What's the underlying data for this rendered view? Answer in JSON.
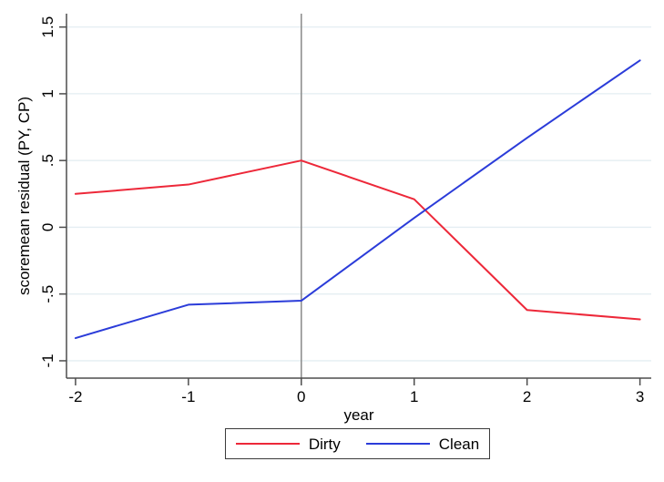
{
  "chart_data": {
    "type": "line",
    "title": "",
    "xlabel": "year",
    "ylabel": "scoremean residual (PY, CP)",
    "x": [
      -2,
      -1,
      0,
      1,
      2,
      3
    ],
    "series": [
      {
        "name": "Dirty",
        "color": "#ed2839",
        "values": [
          0.25,
          0.32,
          0.5,
          0.21,
          -0.62,
          -0.69
        ]
      },
      {
        "name": "Clean",
        "color": "#2b3cd9",
        "values": [
          -0.83,
          -0.58,
          -0.55,
          0.07,
          0.67,
          1.25
        ]
      }
    ],
    "xlim": [
      -2.08,
      3.1
    ],
    "ylim": [
      -1.13,
      1.6
    ],
    "x_ticks": {
      "values": [
        -2,
        -1,
        0,
        1,
        2,
        3
      ],
      "labels": [
        "-2",
        "-1",
        "0",
        "1",
        "2",
        "3"
      ]
    },
    "y_ticks": {
      "values": [
        1.5,
        1,
        0.5,
        0,
        -0.5,
        -1
      ],
      "labels": [
        "1.5",
        "1",
        ".5",
        "0",
        "-.5",
        "-1"
      ]
    },
    "grid": "horizontal",
    "reference_line_x": 0,
    "legend_position": "bottom",
    "colors": {
      "grid": "#e4eef2",
      "axis": "#4d4d4d",
      "reference_line": "#8f8f8f",
      "text": "#000000",
      "legend_border": "#3b3b3b",
      "background": "#ffffff"
    }
  }
}
